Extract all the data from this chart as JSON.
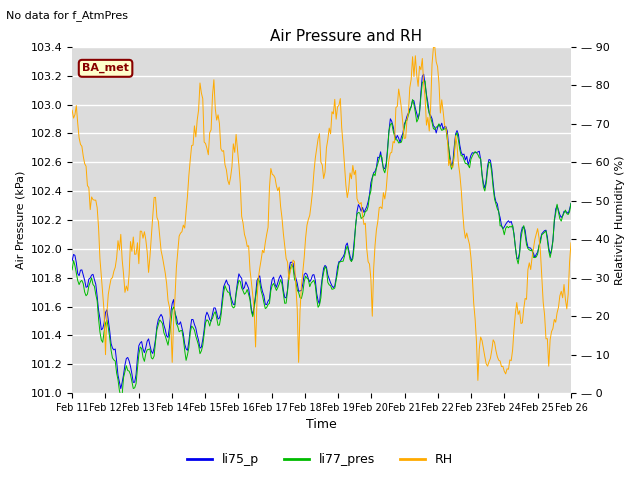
{
  "title": "Air Pressure and RH",
  "no_data_text": "No data for f_AtmPres",
  "annotation_text": "BA_met",
  "xlabel": "Time",
  "ylabel_left": "Air Pressure (kPa)",
  "ylabel_right": "Relativity Humidity (%)",
  "ylim_left": [
    101.0,
    103.4
  ],
  "ylim_right": [
    0,
    90
  ],
  "yticks_left": [
    101.0,
    101.2,
    101.4,
    101.6,
    101.8,
    102.0,
    102.2,
    102.4,
    102.6,
    102.8,
    103.0,
    103.2,
    103.4
  ],
  "yticks_right": [
    0,
    10,
    20,
    30,
    40,
    50,
    60,
    70,
    80,
    90
  ],
  "xtick_labels": [
    "Feb 11",
    "Feb 12",
    "Feb 13",
    "Feb 14",
    "Feb 15",
    "Feb 16",
    "Feb 17",
    "Feb 18",
    "Feb 19",
    "Feb 20",
    "Feb 21",
    "Feb 22",
    "Feb 23",
    "Feb 24",
    "Feb 25",
    "Feb 26"
  ],
  "color_li75": "#0000ee",
  "color_li77": "#00bb00",
  "color_rh": "#ffaa00",
  "bg_color": "#dcdcdc",
  "annotation_facecolor": "#ffffcc",
  "annotation_edgecolor": "#880000",
  "annotation_textcolor": "#880000",
  "legend_entries": [
    "li75_p",
    "li77_pres",
    "RH"
  ],
  "n_points": 360
}
